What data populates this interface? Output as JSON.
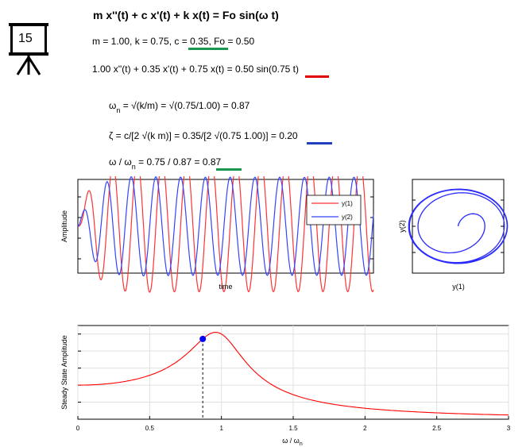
{
  "slide": {
    "number": "15"
  },
  "equations": {
    "title": "m x''(t) + c x'(t) + k x(t) = Fo sin(ω t)",
    "params_prefix": "m = 1.00, k = 0.75, ",
    "params_c": "c = 0.35",
    "params_suffix": ", Fo = 0.50",
    "specific_prefix": "1.00 x''(t) + 0.35 x'(t) + 0.75 x(t) = 0.50 sin(",
    "specific_omega": "0.75",
    "specific_suffix": " t)",
    "omega_n_symbol": "ω",
    "omega_n_sub": "n",
    "omega_n_expr": " = √(k/m) = √(0.75/1.00) = 0.87",
    "zeta_prefix": "ζ = c/[2 √(k m)] = 0.35/[2 √(0.75 1.00)] = ",
    "zeta_value": "0.20",
    "ratio_prefix": "ω / ω",
    "ratio_sub": "n",
    "ratio_mid": " = 0.75 / 0.87 = ",
    "ratio_value": "0.87"
  },
  "colors": {
    "green_underline": "#1a9850",
    "red_underline": "#e00000",
    "blue_underline": "#1f3fbf",
    "series_y1": "#ff3333",
    "series_y2": "#3344ff",
    "phase": "#2a2aff",
    "marker": "#0000ff"
  },
  "chart_data": [
    {
      "type": "line",
      "xlabel": "time",
      "ylabel": "Amplitude",
      "grid": false,
      "legend_position": "top-right",
      "series": [
        {
          "name": "y(1)",
          "color": "#ff3333",
          "amplitude_max": 0.75,
          "omega": 0.75
        },
        {
          "name": "y(2)",
          "color": "#3344ff",
          "amplitude_max": 0.56,
          "omega": 0.75
        }
      ]
    },
    {
      "type": "line",
      "xlabel": "y(1)",
      "ylabel": "y(2)",
      "grid": false,
      "description_values": {
        "turns": 4
      }
    },
    {
      "type": "line",
      "xlabel": "ω / ω",
      "xlabel_sub": "n",
      "ylabel": "Steady State Amplitude",
      "grid": true,
      "xlim": [
        0,
        3
      ],
      "x_ticks": [
        "0",
        "0.5",
        "1",
        "1.5",
        "2",
        "2.5",
        "3"
      ],
      "zeta": 0.2,
      "marker": {
        "x": 0.87,
        "y": 0.58
      }
    }
  ]
}
